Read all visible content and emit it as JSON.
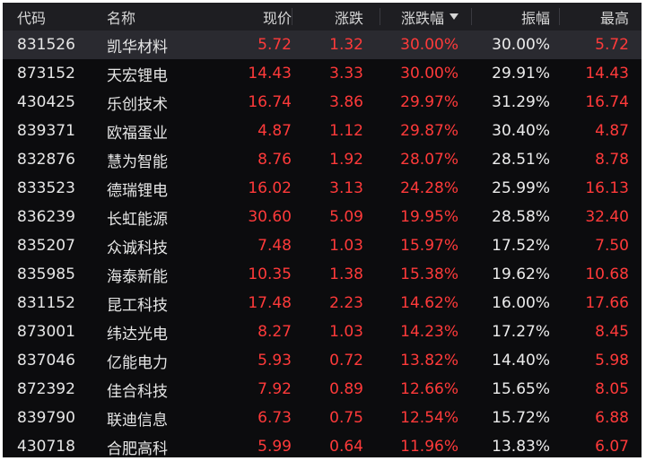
{
  "colors": {
    "background": "#0c0c0e",
    "header_background": "#1e1e22",
    "selected_row": "#2a2a30",
    "up": "#ff3a3a",
    "text": "#e6e6e6"
  },
  "header": {
    "code": "代码",
    "name": "名称",
    "price": "现价",
    "change": "涨跌",
    "change_pct": "涨跌幅",
    "amplitude": "振幅",
    "high": "最高",
    "sort_icon": "sort-descending-icon"
  },
  "rows": [
    {
      "code": "831526",
      "name": "凯华材料",
      "price": "5.72",
      "change": "1.32",
      "change_pct": "30.00%",
      "amplitude": "30.00%",
      "high": "5.72"
    },
    {
      "code": "873152",
      "name": "天宏锂电",
      "price": "14.43",
      "change": "3.33",
      "change_pct": "30.00%",
      "amplitude": "29.91%",
      "high": "14.43"
    },
    {
      "code": "430425",
      "name": "乐创技术",
      "price": "16.74",
      "change": "3.86",
      "change_pct": "29.97%",
      "amplitude": "31.29%",
      "high": "16.74"
    },
    {
      "code": "839371",
      "name": "欧福蛋业",
      "price": "4.87",
      "change": "1.12",
      "change_pct": "29.87%",
      "amplitude": "30.40%",
      "high": "4.87"
    },
    {
      "code": "832876",
      "name": "慧为智能",
      "price": "8.76",
      "change": "1.92",
      "change_pct": "28.07%",
      "amplitude": "28.51%",
      "high": "8.78"
    },
    {
      "code": "833523",
      "name": "德瑞锂电",
      "price": "16.02",
      "change": "3.13",
      "change_pct": "24.28%",
      "amplitude": "25.99%",
      "high": "16.13"
    },
    {
      "code": "836239",
      "name": "长虹能源",
      "price": "30.60",
      "change": "5.09",
      "change_pct": "19.95%",
      "amplitude": "28.58%",
      "high": "32.40"
    },
    {
      "code": "835207",
      "name": "众诚科技",
      "price": "7.48",
      "change": "1.03",
      "change_pct": "15.97%",
      "amplitude": "17.52%",
      "high": "7.50"
    },
    {
      "code": "835985",
      "name": "海泰新能",
      "price": "10.35",
      "change": "1.38",
      "change_pct": "15.38%",
      "amplitude": "19.62%",
      "high": "10.68"
    },
    {
      "code": "831152",
      "name": "昆工科技",
      "price": "17.48",
      "change": "2.23",
      "change_pct": "14.62%",
      "amplitude": "16.00%",
      "high": "17.66"
    },
    {
      "code": "873001",
      "name": "纬达光电",
      "price": "8.27",
      "change": "1.03",
      "change_pct": "14.23%",
      "amplitude": "17.27%",
      "high": "8.45"
    },
    {
      "code": "837046",
      "name": "亿能电力",
      "price": "5.93",
      "change": "0.72",
      "change_pct": "13.82%",
      "amplitude": "14.40%",
      "high": "5.98"
    },
    {
      "code": "872392",
      "name": "佳合科技",
      "price": "7.92",
      "change": "0.89",
      "change_pct": "12.66%",
      "amplitude": "15.65%",
      "high": "8.05"
    },
    {
      "code": "839790",
      "name": "联迪信息",
      "price": "6.73",
      "change": "0.75",
      "change_pct": "12.54%",
      "amplitude": "15.72%",
      "high": "6.88"
    },
    {
      "code": "430718",
      "name": "合肥高科",
      "price": "5.99",
      "change": "0.64",
      "change_pct": "11.96%",
      "amplitude": "13.83%",
      "high": "6.07"
    }
  ],
  "selected_row_index": 0
}
